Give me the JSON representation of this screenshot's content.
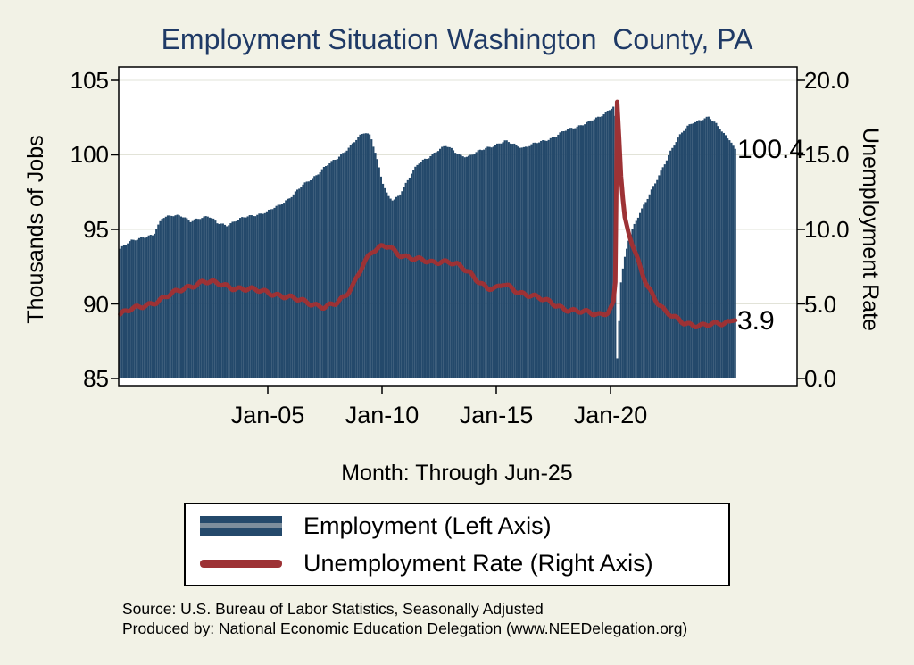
{
  "title": "Employment Situation Washington  County, PA",
  "colors": {
    "background": "#f2f2e6",
    "plot_background": "#ffffff",
    "bar": "#24496b",
    "line": "#9d3235",
    "title_text": "#1f3a66",
    "gridline": "#e2e3d8",
    "axis": "#000000"
  },
  "chart_data": {
    "type": "combo",
    "title": "Employment Situation Washington  County, PA",
    "frequency": "monthly",
    "left_axis": {
      "title": "Thousands of Jobs",
      "ticks": [
        "105",
        "100",
        "95",
        "90",
        "85"
      ],
      "range": [
        85,
        105
      ]
    },
    "right_axis": {
      "title": "Unemployment Rate",
      "ticks": [
        "20.0",
        "15.0",
        "10.0",
        "5.0",
        "0.0"
      ],
      "range": [
        0,
        20
      ]
    },
    "x_axis": {
      "title": "Month: Through Jun-25",
      "ticks": [
        "Jan-05",
        "Jan-10",
        "Jan-15",
        "Jan-20"
      ],
      "tick_years": [
        2005,
        2010,
        2015,
        2020
      ],
      "range_years": [
        1998.54,
        2025.46
      ]
    },
    "annotations": [
      {
        "text": "100.4",
        "axis": "left",
        "value": 100.4
      },
      {
        "text": "3.9",
        "axis": "right",
        "value": 3.9
      }
    ],
    "series": [
      {
        "name": "Employment (Left Axis)",
        "type": "bar",
        "axis": "left",
        "units": "thousands of jobs",
        "points": [
          [
            1998.54,
            93.7
          ],
          [
            1999.0,
            94.2
          ],
          [
            1999.5,
            94.5
          ],
          [
            2000.0,
            94.6
          ],
          [
            2000.4,
            95.8
          ],
          [
            2000.8,
            96.0
          ],
          [
            2001.2,
            95.9
          ],
          [
            2001.6,
            95.5
          ],
          [
            2002.0,
            95.8
          ],
          [
            2002.4,
            95.9
          ],
          [
            2002.8,
            95.4
          ],
          [
            2003.2,
            95.3
          ],
          [
            2003.6,
            95.6
          ],
          [
            2004.0,
            95.8
          ],
          [
            2004.5,
            96.0
          ],
          [
            2005.0,
            96.2
          ],
          [
            2005.5,
            96.6
          ],
          [
            2006.0,
            97.2
          ],
          [
            2006.5,
            97.9
          ],
          [
            2007.0,
            98.5
          ],
          [
            2007.5,
            99.2
          ],
          [
            2008.0,
            99.7
          ],
          [
            2008.4,
            100.3
          ],
          [
            2008.8,
            100.9
          ],
          [
            2009.0,
            101.2
          ],
          [
            2009.25,
            101.5
          ],
          [
            2009.5,
            101.3
          ],
          [
            2009.75,
            100.0
          ],
          [
            2010.0,
            98.3
          ],
          [
            2010.25,
            97.2
          ],
          [
            2010.5,
            96.9
          ],
          [
            2010.75,
            97.3
          ],
          [
            2011.0,
            98.0
          ],
          [
            2011.3,
            98.8
          ],
          [
            2011.6,
            99.4
          ],
          [
            2012.0,
            99.8
          ],
          [
            2012.4,
            100.3
          ],
          [
            2012.8,
            100.6
          ],
          [
            2013.0,
            100.4
          ],
          [
            2013.4,
            100.0
          ],
          [
            2013.8,
            99.9
          ],
          [
            2014.2,
            100.2
          ],
          [
            2014.6,
            100.5
          ],
          [
            2015.0,
            100.7
          ],
          [
            2015.4,
            100.9
          ],
          [
            2015.8,
            100.7
          ],
          [
            2016.2,
            100.5
          ],
          [
            2016.6,
            100.7
          ],
          [
            2017.0,
            100.9
          ],
          [
            2017.5,
            101.2
          ],
          [
            2018.0,
            101.6
          ],
          [
            2018.5,
            101.9
          ],
          [
            2019.0,
            102.2
          ],
          [
            2019.5,
            102.5
          ],
          [
            2019.9,
            103.0
          ],
          [
            2020.12,
            103.3
          ],
          [
            2020.21,
            102.6
          ],
          [
            2020.29,
            86.3
          ],
          [
            2020.38,
            89.0
          ],
          [
            2020.46,
            91.5
          ],
          [
            2020.6,
            93.0
          ],
          [
            2020.8,
            94.3
          ],
          [
            2021.0,
            95.2
          ],
          [
            2021.3,
            96.2
          ],
          [
            2021.6,
            97.0
          ],
          [
            2022.0,
            98.2
          ],
          [
            2022.3,
            99.2
          ],
          [
            2022.6,
            100.2
          ],
          [
            2023.0,
            101.2
          ],
          [
            2023.3,
            101.8
          ],
          [
            2023.6,
            102.2
          ],
          [
            2024.0,
            102.4
          ],
          [
            2024.3,
            102.5
          ],
          [
            2024.6,
            102.1
          ],
          [
            2024.9,
            101.6
          ],
          [
            2025.1,
            101.2
          ],
          [
            2025.3,
            100.8
          ],
          [
            2025.46,
            100.4
          ]
        ]
      },
      {
        "name": "Unemployment Rate (Right Axis)",
        "type": "line",
        "axis": "right",
        "units": "percent",
        "points": [
          [
            1998.54,
            4.3
          ],
          [
            1999.0,
            4.6
          ],
          [
            1999.4,
            4.8
          ],
          [
            1999.8,
            5.0
          ],
          [
            2000.2,
            5.2
          ],
          [
            2000.6,
            5.5
          ],
          [
            2001.0,
            5.8
          ],
          [
            2001.4,
            6.1
          ],
          [
            2001.8,
            6.3
          ],
          [
            2002.2,
            6.5
          ],
          [
            2002.6,
            6.4
          ],
          [
            2003.0,
            6.3
          ],
          [
            2003.5,
            6.1
          ],
          [
            2004.0,
            6.0
          ],
          [
            2004.5,
            5.9
          ],
          [
            2005.0,
            5.8
          ],
          [
            2005.5,
            5.6
          ],
          [
            2006.0,
            5.4
          ],
          [
            2006.5,
            5.2
          ],
          [
            2007.0,
            5.0
          ],
          [
            2007.5,
            4.8
          ],
          [
            2008.0,
            5.0
          ],
          [
            2008.4,
            5.5
          ],
          [
            2008.8,
            6.5
          ],
          [
            2009.2,
            7.8
          ],
          [
            2009.6,
            8.5
          ],
          [
            2010.0,
            8.8
          ],
          [
            2010.3,
            8.9
          ],
          [
            2010.7,
            8.4
          ],
          [
            2011.0,
            8.2
          ],
          [
            2011.4,
            8.0
          ],
          [
            2011.8,
            7.9
          ],
          [
            2012.2,
            7.8
          ],
          [
            2012.6,
            7.9
          ],
          [
            2013.0,
            7.8
          ],
          [
            2013.4,
            7.5
          ],
          [
            2013.8,
            7.1
          ],
          [
            2014.2,
            6.6
          ],
          [
            2014.6,
            6.1
          ],
          [
            2015.0,
            6.0
          ],
          [
            2015.3,
            6.3
          ],
          [
            2015.6,
            6.1
          ],
          [
            2016.0,
            5.8
          ],
          [
            2016.5,
            5.6
          ],
          [
            2017.0,
            5.3
          ],
          [
            2017.5,
            5.0
          ],
          [
            2018.0,
            4.7
          ],
          [
            2018.5,
            4.5
          ],
          [
            2019.0,
            4.4
          ],
          [
            2019.5,
            4.3
          ],
          [
            2019.9,
            4.5
          ],
          [
            2020.12,
            5.0
          ],
          [
            2020.21,
            6.5
          ],
          [
            2020.29,
            18.6
          ],
          [
            2020.38,
            16.0
          ],
          [
            2020.46,
            13.5
          ],
          [
            2020.6,
            11.0
          ],
          [
            2020.8,
            9.7
          ],
          [
            2021.0,
            8.8
          ],
          [
            2021.3,
            7.5
          ],
          [
            2021.6,
            6.3
          ],
          [
            2022.0,
            5.2
          ],
          [
            2022.4,
            4.4
          ],
          [
            2022.8,
            4.1
          ],
          [
            2023.2,
            3.8
          ],
          [
            2023.6,
            3.6
          ],
          [
            2024.0,
            3.5
          ],
          [
            2024.4,
            3.6
          ],
          [
            2024.8,
            3.7
          ],
          [
            2025.1,
            3.8
          ],
          [
            2025.46,
            3.9
          ]
        ]
      }
    ]
  },
  "legend": {
    "items": [
      {
        "label": "Employment (Left Axis)",
        "swatch": "bar"
      },
      {
        "label": "Unemployment Rate (Right Axis)",
        "swatch": "line"
      }
    ]
  },
  "footer": {
    "line1": "Source: U.S. Bureau of Labor Statistics, Seasonally Adjusted",
    "line2": "Produced by: National Economic Education Delegation (www.NEEDelegation.org)"
  }
}
